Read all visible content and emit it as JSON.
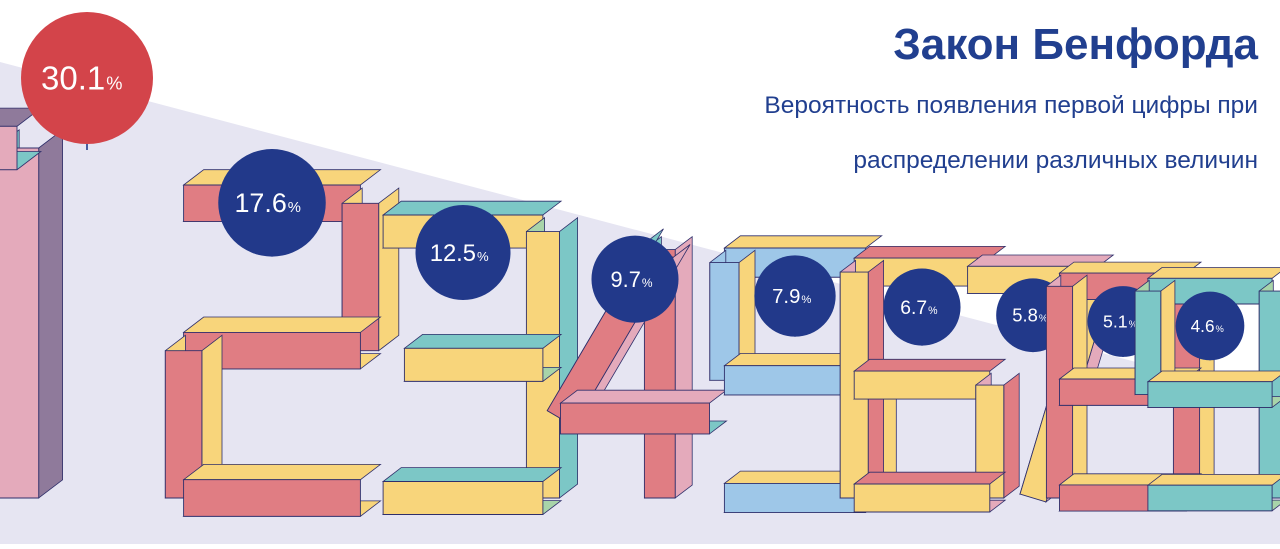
{
  "title": "Закон Бенфорда",
  "subtitle_lines": [
    "Вероятность появления первой цифры при",
    "распределении различных величин"
  ],
  "colors": {
    "background_band": "#e6e5f2",
    "highlight_circle": "#d3444a",
    "circle": "#22398a",
    "title": "#213f8f",
    "face_yellow": "#f8d57b",
    "face_pink": "#e4aabb",
    "face_teal": "#7cc7c6",
    "face_salmon": "#e07d83",
    "face_mauve": "#8f7a9b",
    "face_blue": "#9ec7e8",
    "face_green": "#a8d4a9",
    "outline": "#2f2f6b"
  },
  "chart_data": {
    "type": "bar",
    "categories": [
      "1",
      "2",
      "3",
      "4",
      "5",
      "6",
      "7",
      "8",
      "9"
    ],
    "values": [
      30.1,
      17.6,
      12.5,
      9.7,
      7.9,
      6.7,
      5.8,
      5.1,
      4.6
    ],
    "labels": [
      "30.1",
      "17.6",
      "12.5",
      "9.7",
      "7.9",
      "6.7",
      "5.8",
      "5.1",
      "4.6"
    ],
    "unit": "%",
    "title": "Закон Бенфорда"
  }
}
